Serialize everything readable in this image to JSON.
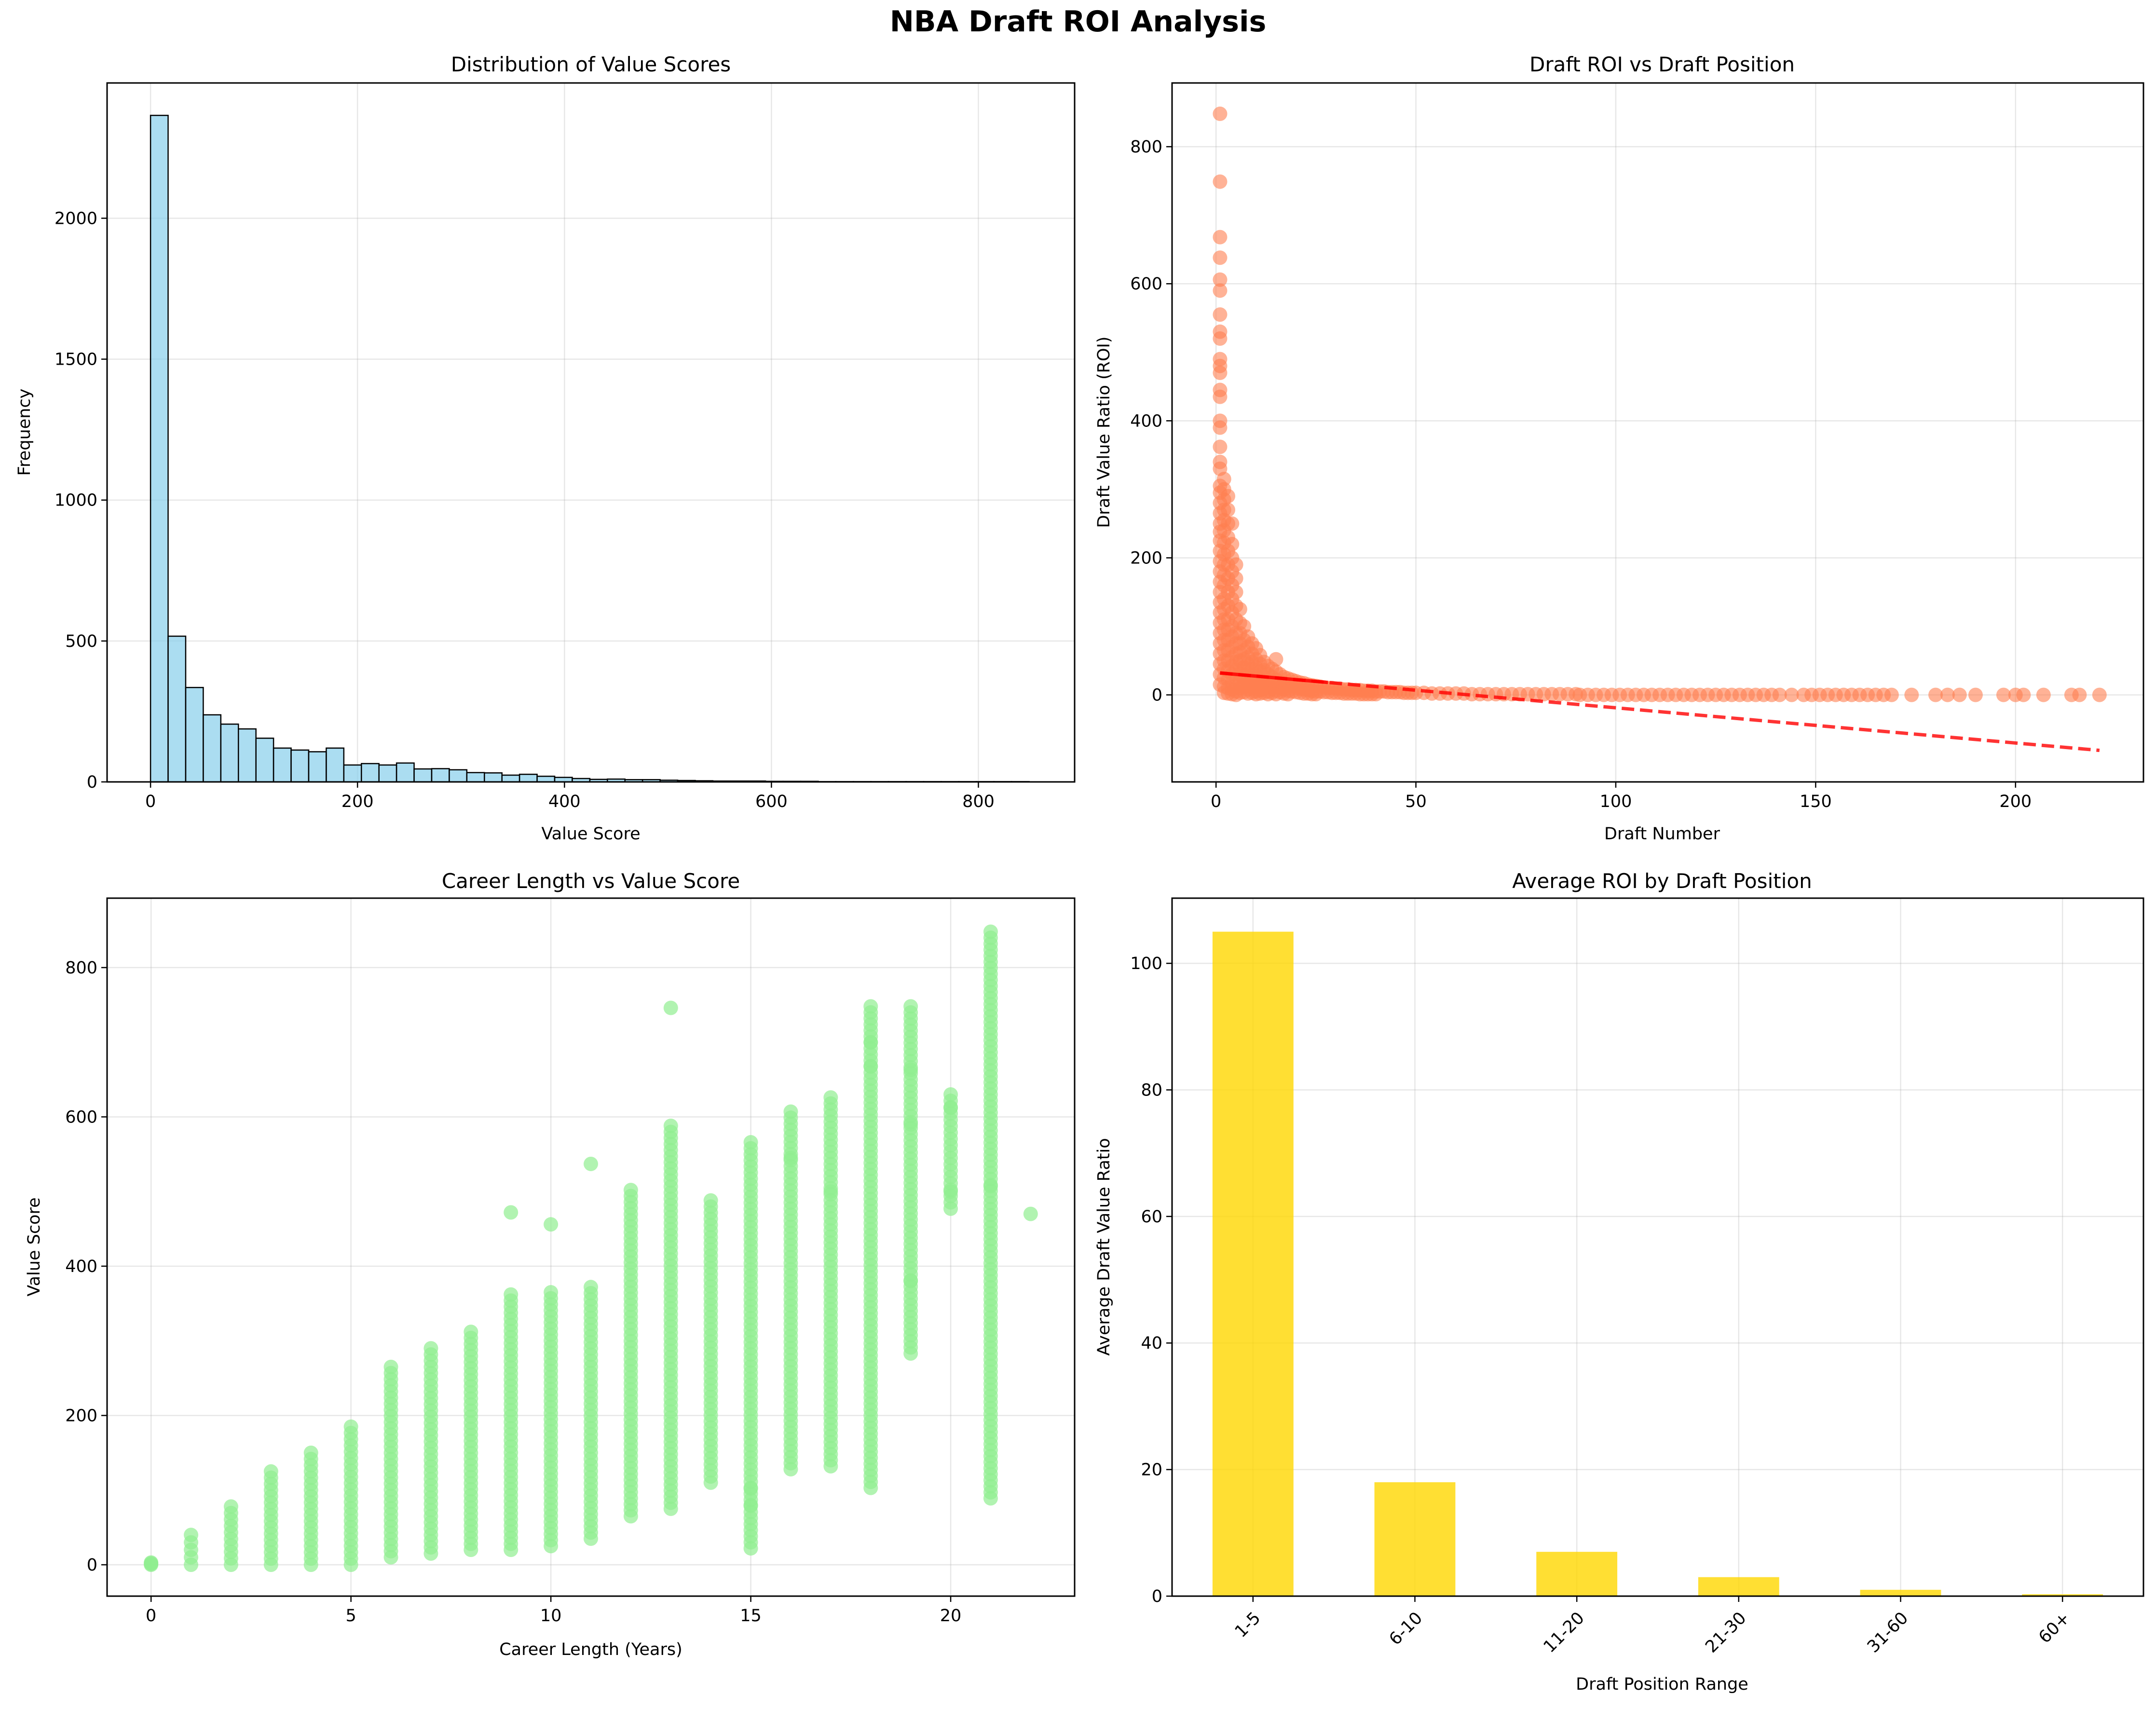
{
  "suptitle": "NBA Draft ROI Analysis",
  "chart_data": [
    {
      "type": "bar",
      "subtype": "histogram",
      "title": "Distribution of Value Scores",
      "xlabel": "Value Score",
      "ylabel": "Frequency",
      "xlim": [
        -42,
        893
      ],
      "ylim": [
        0,
        2480
      ],
      "xticks": [
        0,
        200,
        400,
        600,
        800
      ],
      "yticks": [
        0,
        500,
        1000,
        1500,
        2000
      ],
      "grid": true,
      "bar_color": "#87CEEB",
      "edge_color": "#000000",
      "bin_start": 0,
      "bin_width": 16.98,
      "values": [
        2365,
        517,
        335,
        238,
        205,
        188,
        155,
        120,
        113,
        107,
        120,
        60,
        65,
        60,
        67,
        46,
        47,
        43,
        33,
        32,
        24,
        27,
        20,
        16,
        12,
        9,
        10,
        8,
        8,
        6,
        5,
        4,
        3,
        3,
        3,
        2,
        2,
        2,
        1,
        1,
        1,
        1,
        1,
        1,
        1,
        1,
        1,
        1,
        1,
        1
      ]
    },
    {
      "type": "scatter",
      "title": "Draft ROI vs Draft Position",
      "xlabel": "Draft Number",
      "ylabel": "Draft Value Ratio (ROI)",
      "xlim": [
        -11,
        232
      ],
      "ylim": [
        -127,
        893
      ],
      "xticks": [
        0,
        50,
        100,
        150,
        200
      ],
      "yticks": [
        0,
        200,
        400,
        600,
        800
      ],
      "grid": true,
      "point_color": "#FF7F50",
      "trend_color": "#FF0000",
      "trendline": {
        "x": [
          1,
          221
        ],
        "y": [
          32,
          -81
        ],
        "solid_until_x": 28
      },
      "points_early": [
        [
          1,
          848
        ],
        [
          1,
          749
        ],
        [
          1,
          668
        ],
        [
          1,
          638
        ],
        [
          1,
          606
        ],
        [
          1,
          590
        ],
        [
          1,
          555
        ],
        [
          1,
          530
        ],
        [
          1,
          520
        ],
        [
          1,
          490
        ],
        [
          1,
          480
        ],
        [
          1,
          470
        ],
        [
          1,
          445
        ],
        [
          1,
          435
        ],
        [
          1,
          400
        ],
        [
          1,
          390
        ],
        [
          1,
          362
        ],
        [
          1,
          340
        ],
        [
          1,
          330
        ],
        [
          1,
          305
        ],
        [
          1,
          295
        ],
        [
          1,
          280
        ],
        [
          1,
          265
        ],
        [
          1,
          250
        ],
        [
          1,
          238
        ],
        [
          1,
          225
        ],
        [
          1,
          210
        ],
        [
          1,
          195
        ],
        [
          1,
          180
        ],
        [
          1,
          165
        ],
        [
          1,
          150
        ],
        [
          1,
          135
        ],
        [
          1,
          120
        ],
        [
          1,
          105
        ],
        [
          1,
          90
        ],
        [
          1,
          75
        ],
        [
          1,
          60
        ],
        [
          1,
          45
        ],
        [
          1,
          30
        ],
        [
          1,
          15
        ],
        [
          2,
          315
        ],
        [
          2,
          300
        ],
        [
          2,
          285
        ],
        [
          2,
          270
        ],
        [
          2,
          255
        ],
        [
          2,
          240
        ],
        [
          2,
          222
        ],
        [
          2,
          205
        ],
        [
          2,
          190
        ],
        [
          2,
          175
        ],
        [
          2,
          160
        ],
        [
          2,
          140
        ],
        [
          2,
          125
        ],
        [
          2,
          110
        ],
        [
          2,
          95
        ],
        [
          2,
          80
        ],
        [
          2,
          65
        ],
        [
          2,
          50
        ],
        [
          2,
          38
        ],
        [
          2,
          25
        ],
        [
          2,
          12
        ],
        [
          2,
          3
        ],
        [
          3,
          290
        ],
        [
          3,
          270
        ],
        [
          3,
          250
        ],
        [
          3,
          230
        ],
        [
          3,
          210
        ],
        [
          3,
          190
        ],
        [
          3,
          170
        ],
        [
          3,
          150
        ],
        [
          3,
          130
        ],
        [
          3,
          110
        ],
        [
          3,
          95
        ],
        [
          3,
          80
        ],
        [
          3,
          65
        ],
        [
          3,
          50
        ],
        [
          3,
          35
        ],
        [
          3,
          22
        ],
        [
          3,
          10
        ],
        [
          3,
          2
        ],
        [
          4,
          250
        ],
        [
          4,
          220
        ],
        [
          4,
          200
        ],
        [
          4,
          180
        ],
        [
          4,
          160
        ],
        [
          4,
          140
        ],
        [
          4,
          120
        ],
        [
          4,
          100
        ],
        [
          4,
          85
        ],
        [
          4,
          70
        ],
        [
          4,
          55
        ],
        [
          4,
          42
        ],
        [
          4,
          30
        ],
        [
          4,
          18
        ],
        [
          4,
          8
        ],
        [
          4,
          1
        ],
        [
          5,
          190
        ],
        [
          5,
          170
        ],
        [
          5,
          150
        ],
        [
          5,
          130
        ],
        [
          5,
          110
        ],
        [
          5,
          90
        ],
        [
          5,
          75
        ],
        [
          5,
          60
        ],
        [
          5,
          48
        ],
        [
          5,
          36
        ],
        [
          5,
          25
        ],
        [
          5,
          14
        ],
        [
          5,
          5
        ],
        [
          5,
          0
        ],
        [
          6,
          125
        ],
        [
          6,
          105
        ],
        [
          6,
          90
        ],
        [
          6,
          75
        ],
        [
          6,
          62
        ],
        [
          6,
          50
        ],
        [
          6,
          40
        ],
        [
          6,
          30
        ],
        [
          6,
          20
        ],
        [
          6,
          10
        ],
        [
          6,
          3
        ],
        [
          7,
          100
        ],
        [
          7,
          80
        ],
        [
          7,
          65
        ],
        [
          7,
          52
        ],
        [
          7,
          40
        ],
        [
          7,
          30
        ],
        [
          7,
          20
        ],
        [
          7,
          12
        ],
        [
          7,
          4
        ],
        [
          8,
          85
        ],
        [
          8,
          70
        ],
        [
          8,
          55
        ],
        [
          8,
          45
        ],
        [
          8,
          35
        ],
        [
          8,
          25
        ],
        [
          8,
          16
        ],
        [
          8,
          8
        ],
        [
          8,
          2
        ],
        [
          9,
          75
        ],
        [
          9,
          60
        ],
        [
          9,
          48
        ],
        [
          9,
          38
        ],
        [
          9,
          28
        ],
        [
          9,
          18
        ],
        [
          9,
          10
        ],
        [
          9,
          3
        ],
        [
          10,
          68
        ],
        [
          10,
          52
        ],
        [
          10,
          40
        ],
        [
          10,
          30
        ],
        [
          10,
          20
        ],
        [
          10,
          12
        ],
        [
          10,
          5
        ],
        [
          10,
          1
        ],
        [
          11,
          58
        ],
        [
          11,
          45
        ],
        [
          11,
          34
        ],
        [
          11,
          24
        ],
        [
          11,
          15
        ],
        [
          11,
          7
        ],
        [
          11,
          2
        ],
        [
          12,
          48
        ],
        [
          12,
          36
        ],
        [
          12,
          26
        ],
        [
          12,
          17
        ],
        [
          12,
          9
        ],
        [
          12,
          3
        ],
        [
          13,
          42
        ],
        [
          13,
          30
        ],
        [
          13,
          20
        ],
        [
          13,
          12
        ],
        [
          13,
          5
        ],
        [
          13,
          1
        ],
        [
          14,
          38
        ],
        [
          14,
          26
        ],
        [
          14,
          17
        ],
        [
          14,
          9
        ],
        [
          14,
          3
        ],
        [
          15,
          52
        ],
        [
          15,
          34
        ],
        [
          15,
          22
        ],
        [
          15,
          13
        ],
        [
          15,
          6
        ],
        [
          15,
          1
        ],
        [
          16,
          30
        ],
        [
          16,
          19
        ],
        [
          16,
          10
        ],
        [
          16,
          4
        ],
        [
          17,
          26
        ],
        [
          17,
          16
        ],
        [
          17,
          8
        ],
        [
          17,
          2
        ],
        [
          18,
          24
        ],
        [
          18,
          14
        ],
        [
          18,
          6
        ],
        [
          18,
          1
        ],
        [
          19,
          22
        ],
        [
          19,
          12
        ],
        [
          19,
          5
        ],
        [
          20,
          20
        ],
        [
          20,
          11
        ],
        [
          20,
          4
        ],
        [
          21,
          18
        ],
        [
          21,
          9
        ],
        [
          21,
          3
        ],
        [
          22,
          17
        ],
        [
          22,
          8
        ],
        [
          22,
          2
        ],
        [
          23,
          15
        ],
        [
          23,
          7
        ],
        [
          23,
          2
        ],
        [
          24,
          14
        ],
        [
          24,
          6
        ],
        [
          24,
          1
        ],
        [
          25,
          13
        ],
        [
          25,
          5
        ],
        [
          25,
          1
        ],
        [
          26,
          12
        ],
        [
          26,
          5
        ],
        [
          27,
          11
        ],
        [
          27,
          4
        ],
        [
          28,
          10
        ],
        [
          28,
          4
        ],
        [
          29,
          10
        ],
        [
          29,
          3
        ],
        [
          30,
          9
        ],
        [
          30,
          3
        ],
        [
          31,
          9
        ],
        [
          31,
          3
        ],
        [
          32,
          8
        ],
        [
          32,
          2
        ],
        [
          33,
          8
        ],
        [
          33,
          2
        ],
        [
          34,
          7
        ],
        [
          34,
          2
        ],
        [
          35,
          7
        ],
        [
          35,
          2
        ],
        [
          36,
          7
        ],
        [
          36,
          1
        ],
        [
          37,
          6
        ],
        [
          37,
          1
        ],
        [
          38,
          6
        ],
        [
          38,
          1
        ],
        [
          39,
          6
        ],
        [
          39,
          1
        ],
        [
          40,
          5
        ],
        [
          40,
          1
        ],
        [
          41,
          5
        ],
        [
          42,
          5
        ],
        [
          43,
          4
        ],
        [
          44,
          4
        ],
        [
          45,
          4
        ],
        [
          46,
          4
        ],
        [
          47,
          3
        ],
        [
          48,
          3
        ],
        [
          49,
          3
        ],
        [
          50,
          3
        ],
        [
          52,
          3
        ],
        [
          54,
          2
        ],
        [
          56,
          2
        ],
        [
          58,
          2
        ],
        [
          60,
          2
        ],
        [
          62,
          2
        ],
        [
          64,
          1
        ],
        [
          66,
          1
        ],
        [
          68,
          1
        ],
        [
          70,
          1
        ],
        [
          72,
          1
        ],
        [
          74,
          1
        ],
        [
          76,
          1
        ],
        [
          78,
          1
        ],
        [
          80,
          1
        ],
        [
          82,
          1
        ],
        [
          84,
          1
        ],
        [
          86,
          1
        ],
        [
          88,
          1
        ],
        [
          90,
          1
        ]
      ],
      "points_late": [
        91,
        93,
        95,
        97,
        99,
        101,
        103,
        105,
        107,
        109,
        111,
        113,
        115,
        117,
        119,
        121,
        123,
        125,
        127,
        129,
        131,
        133,
        135,
        137,
        139,
        141,
        144,
        147,
        149,
        151,
        153,
        155,
        157,
        159,
        161,
        163,
        165,
        167,
        169,
        174,
        180,
        183,
        186,
        190,
        197,
        200,
        202,
        207,
        214,
        216,
        221
      ]
    },
    {
      "type": "scatter",
      "title": "Career Length vs Value Score",
      "xlabel": "Career Length (Years)",
      "ylabel": "Value Score",
      "xlim": [
        -1.1,
        23.1
      ],
      "ylim": [
        -42,
        893
      ],
      "xticks": [
        0,
        5,
        10,
        15,
        20
      ],
      "yticks": [
        0,
        200,
        400,
        600,
        800
      ],
      "grid": true,
      "point_color": "#90EE90",
      "column_ranges": [
        [
          0,
          0,
          3
        ],
        [
          1,
          0,
          40
        ],
        [
          2,
          0,
          78
        ],
        [
          3,
          0,
          125
        ],
        [
          4,
          0,
          150
        ],
        [
          5,
          0,
          185
        ],
        [
          6,
          10,
          265
        ],
        [
          7,
          15,
          290
        ],
        [
          8,
          20,
          312
        ],
        [
          9,
          20,
          362
        ],
        [
          10,
          25,
          365
        ],
        [
          11,
          35,
          372
        ],
        [
          12,
          65,
          502
        ],
        [
          13,
          75,
          588
        ],
        [
          14,
          110,
          488
        ],
        [
          15,
          22,
          566
        ],
        [
          16,
          128,
          607
        ],
        [
          17,
          132,
          626
        ],
        [
          18,
          103,
          748
        ],
        [
          19,
          283,
          748
        ],
        [
          20,
          477,
          630
        ],
        [
          21,
          89,
          848
        ],
        [
          22,
          470,
          470
        ]
      ],
      "outliers": [
        [
          9,
          472
        ],
        [
          10,
          456
        ],
        [
          11,
          537
        ],
        [
          13,
          746
        ],
        [
          15,
          102
        ],
        [
          15,
          80
        ],
        [
          16,
          545
        ],
        [
          17,
          500
        ],
        [
          18,
          700
        ],
        [
          18,
          668
        ],
        [
          19,
          663
        ],
        [
          19,
          590
        ],
        [
          19,
          380
        ],
        [
          20,
          612
        ],
        [
          20,
          500
        ],
        [
          21,
          507
        ]
      ]
    },
    {
      "type": "bar",
      "title": "Average ROI by Draft Position",
      "xlabel": "Draft Position Range",
      "ylabel": "Average Draft Value Ratio",
      "categories": [
        "1-5",
        "6-10",
        "11-20",
        "21-30",
        "31-60",
        "60+"
      ],
      "values": [
        105.0,
        18.0,
        7.0,
        3.0,
        1.0,
        0.3
      ],
      "ylim": [
        0,
        110.3
      ],
      "yticks": [
        0,
        20,
        40,
        60,
        80,
        100
      ],
      "grid": true,
      "bar_color": "#FFD700"
    }
  ]
}
